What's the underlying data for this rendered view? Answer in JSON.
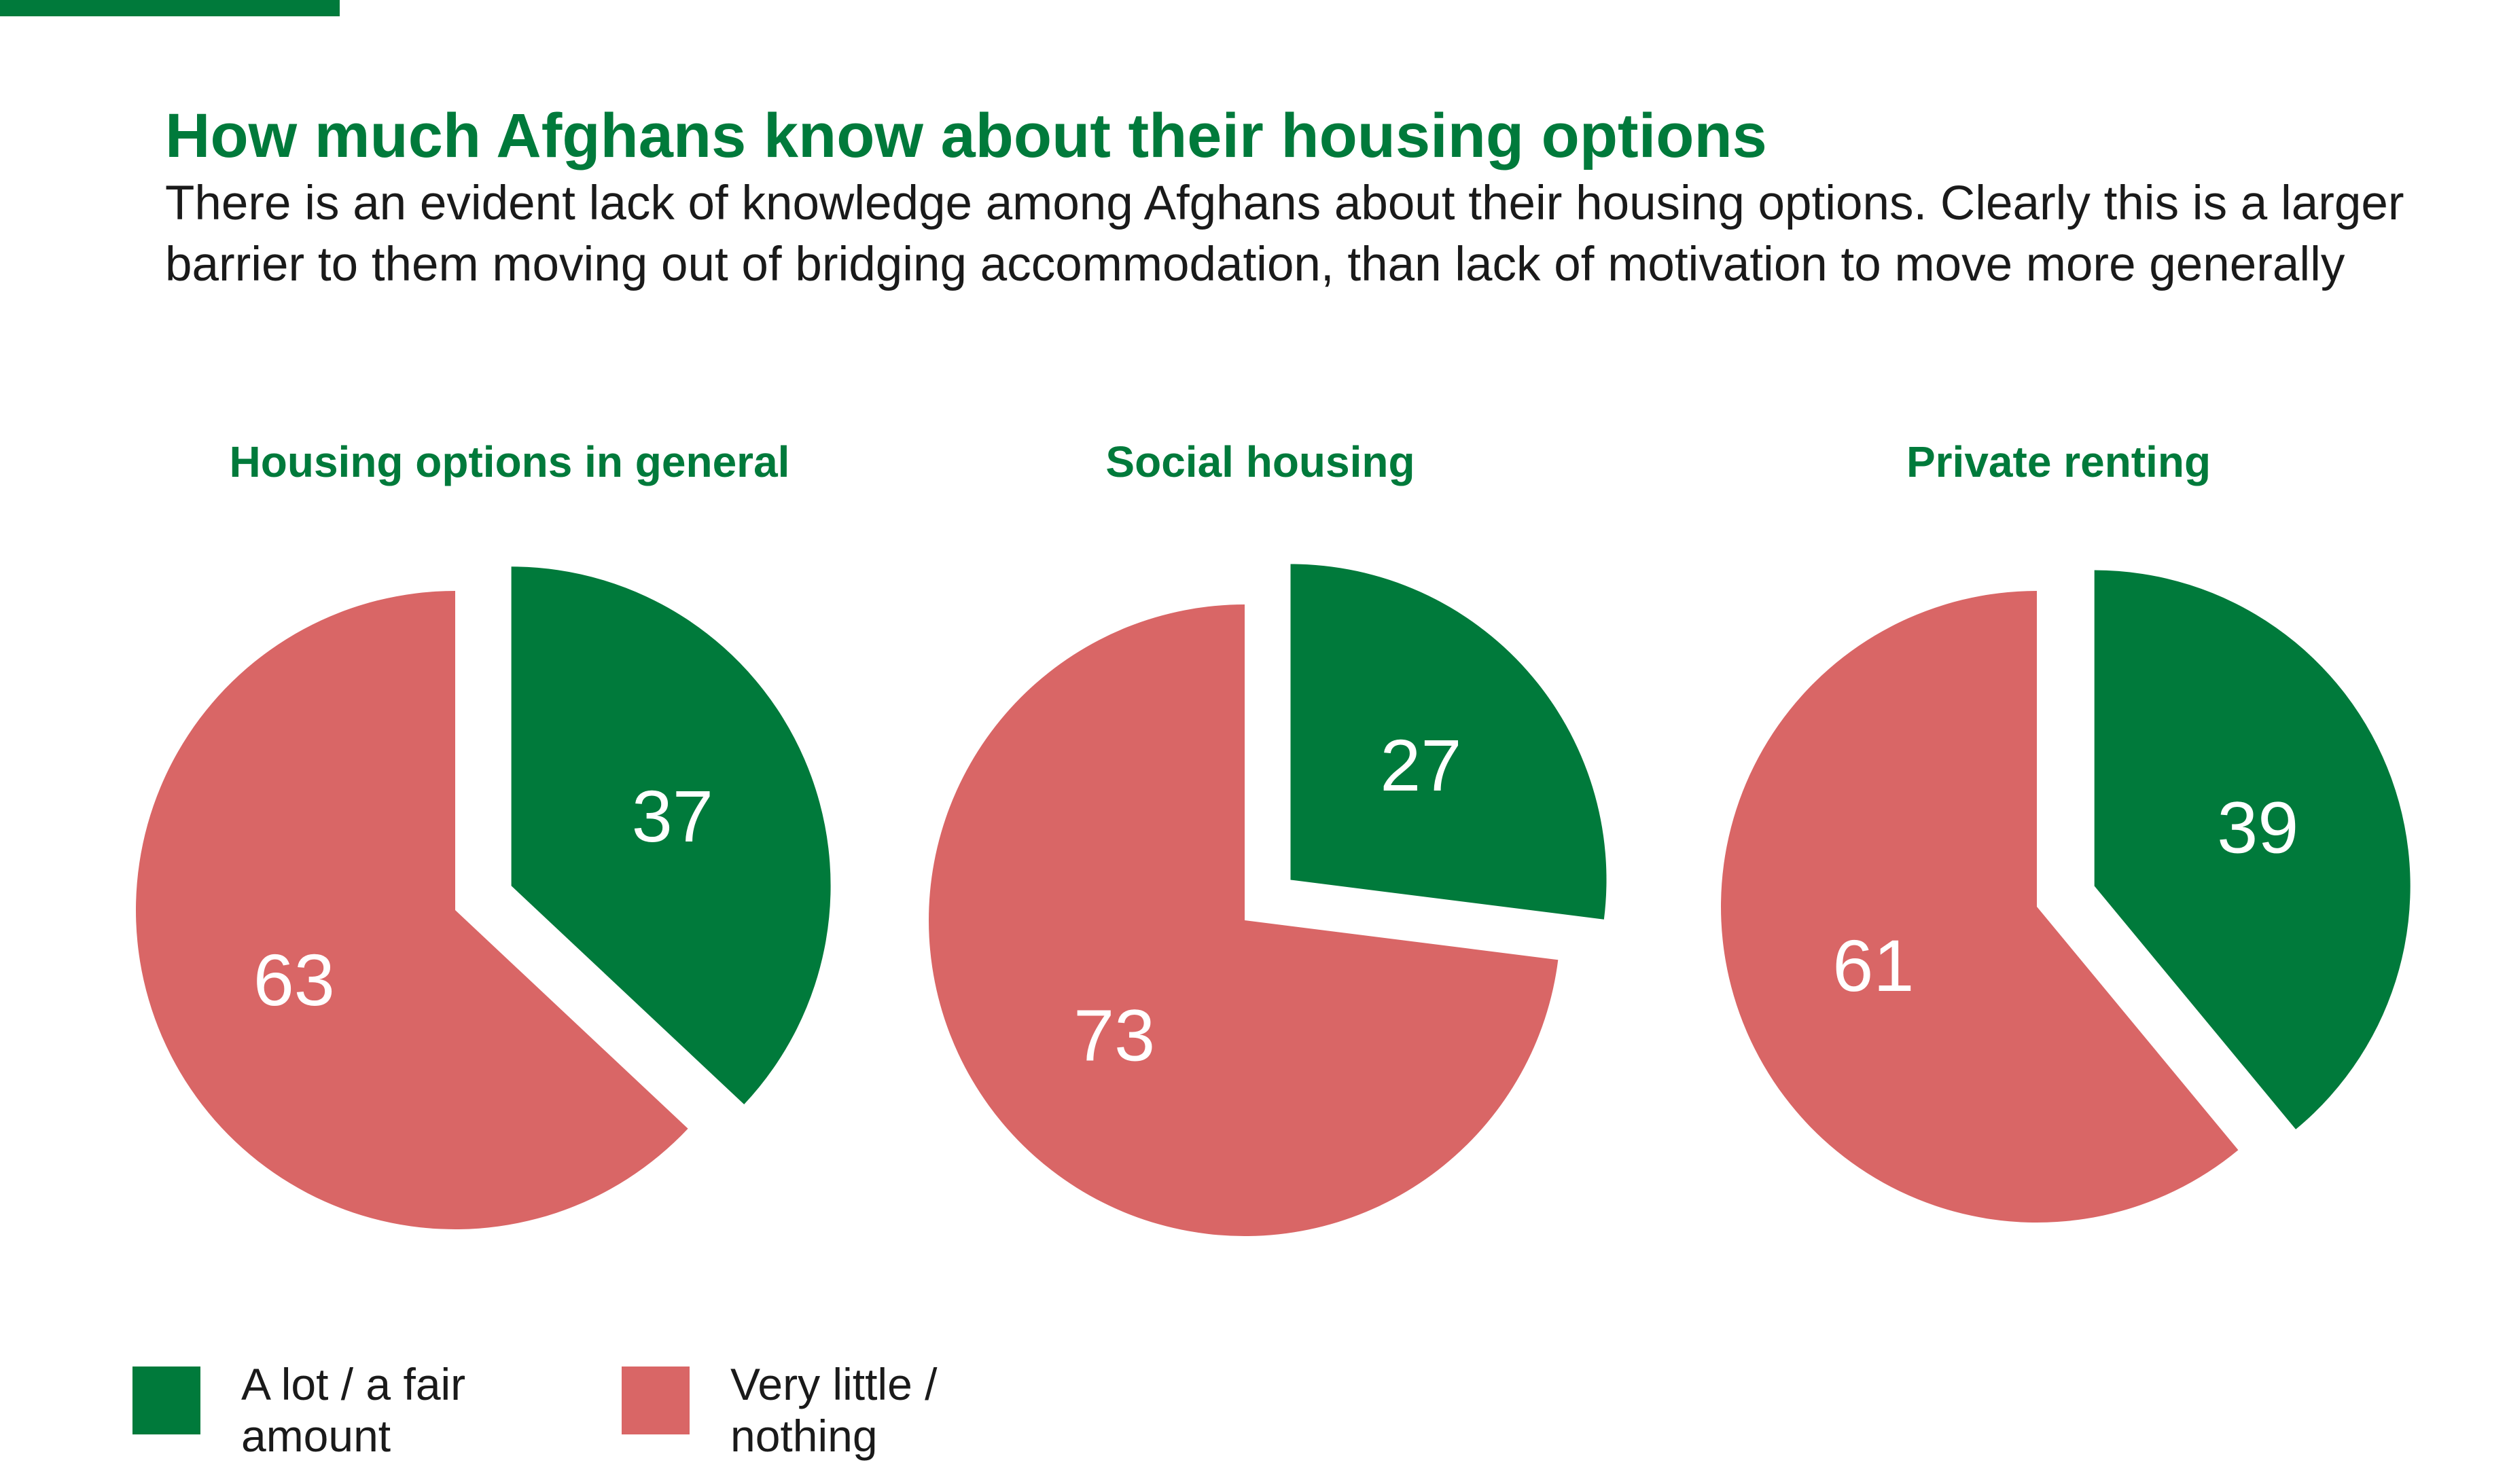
{
  "colors": {
    "accent": "#007a3b",
    "lot": "#007a3b",
    "little": "#d96666"
  },
  "header": {
    "title": "How much Afghans know about their housing options",
    "subtitle": "There is an evident lack of knowledge among Afghans about their housing options. Clearly this is a larger barrier to them moving out of bridging accommodation, than lack of motivation to move more generally"
  },
  "chart_data": [
    {
      "type": "pie",
      "title": "Housing options in general",
      "slices": [
        {
          "name": "A lot / a fair amount",
          "value": 37,
          "exploded": true
        },
        {
          "name": "Very little / nothing",
          "value": 63,
          "exploded": false
        }
      ]
    },
    {
      "type": "pie",
      "title": "Social housing",
      "slices": [
        {
          "name": "A lot / a fair amount",
          "value": 27,
          "exploded": true
        },
        {
          "name": "Very little / nothing",
          "value": 73,
          "exploded": false
        }
      ]
    },
    {
      "type": "pie",
      "title": "Private renting",
      "slices": [
        {
          "name": "A lot / a fair amount",
          "value": 39,
          "exploded": true
        },
        {
          "name": "Very little / nothing",
          "value": 61,
          "exploded": false
        }
      ]
    }
  ],
  "legend": {
    "placement": "bottom-left",
    "items": [
      {
        "label": "A lot / a fair amount",
        "color_key": "lot"
      },
      {
        "label": "Very little / nothing",
        "color_key": "little"
      }
    ]
  }
}
